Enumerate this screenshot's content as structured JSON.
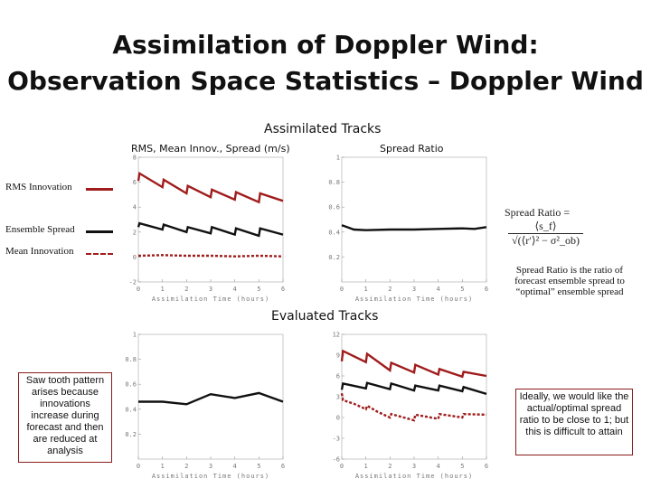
{
  "title_line1": "Assimilation of Doppler Wind:",
  "title_line2": "Observation Space Statistics – Doppler Wind",
  "assimilated_label": "Assimilated Tracks",
  "evaluated_label": "Evaluated Tracks",
  "panel_title_rms": "RMS, Mean Innov., Spread (m/s)",
  "panel_title_ratio": "Spread Ratio",
  "legend": {
    "rms": "RMS Innovation",
    "spread": "Ensemble Spread",
    "mean": "Mean Innovation",
    "rms_color": "#a01c1c",
    "spread_color": "#111111",
    "mean_color": "#a01c1c"
  },
  "formula": {
    "label": "Spread Ratio =",
    "numerator": "⟨s_f⟩",
    "denominator": "√(⟨r′⟩² − σ²_ob)"
  },
  "ratio_note": "Spread Ratio is the ratio of forecast ensemble spread to “optimal” ensemble spread",
  "sawtooth_note": "Saw tooth pattern arises because innovations increase during forecast and then are reduced at analysis",
  "ideal_note": "Ideally, we would like the actual/optimal spread ratio to be close to 1; but this is difficult to attain",
  "chart_data": [
    {
      "id": "assim_rms",
      "type": "line",
      "xlabel": "Assimilation Time (hours)",
      "xlim": [
        0,
        6
      ],
      "ylim": [
        -2,
        8
      ],
      "xticks": [
        0,
        1,
        2,
        3,
        4,
        5,
        6
      ],
      "yticks": [
        -2,
        0,
        2,
        4,
        6,
        8
      ],
      "series": [
        {
          "role": "rms",
          "color": "#a01c1c",
          "dash": false,
          "x": [
            0,
            0.05,
            1,
            1.05,
            2,
            2.05,
            3,
            3.05,
            4,
            4.05,
            5,
            5.05,
            6
          ],
          "y": [
            6.1,
            6.7,
            5.6,
            6.2,
            5.1,
            5.7,
            4.8,
            5.4,
            4.6,
            5.2,
            4.4,
            5.1,
            4.5
          ]
        },
        {
          "role": "spread",
          "color": "#111111",
          "dash": false,
          "x": [
            0,
            0.05,
            1,
            1.05,
            2,
            2.05,
            3,
            3.05,
            4,
            4.05,
            5,
            5.05,
            6
          ],
          "y": [
            2.4,
            2.7,
            2.2,
            2.6,
            2.0,
            2.4,
            1.9,
            2.4,
            1.8,
            2.3,
            1.7,
            2.3,
            1.8
          ]
        },
        {
          "role": "mean",
          "color": "#a01c1c",
          "dash": true,
          "x": [
            0,
            1,
            2,
            3,
            4,
            5,
            6
          ],
          "y": [
            0.1,
            0.15,
            0.1,
            0.1,
            0.05,
            0.1,
            0.05
          ]
        }
      ]
    },
    {
      "id": "assim_ratio",
      "type": "line",
      "xlabel": "Assimilation Time (hours)",
      "xlim": [
        0,
        6
      ],
      "ylim": [
        0,
        1
      ],
      "xticks": [
        0,
        1,
        2,
        3,
        4,
        5,
        6
      ],
      "yticks": [
        0.2,
        0.4,
        0.6,
        0.8,
        1
      ],
      "series": [
        {
          "role": "spread",
          "color": "#111111",
          "dash": false,
          "x": [
            0,
            0.5,
            1,
            2,
            3,
            4,
            5,
            5.5,
            6
          ],
          "y": [
            0.455,
            0.42,
            0.415,
            0.42,
            0.42,
            0.425,
            0.43,
            0.425,
            0.44
          ]
        }
      ]
    },
    {
      "id": "eval_ratio",
      "type": "line",
      "xlabel": "Assimilation Time (hours)",
      "xlim": [
        0,
        6
      ],
      "ylim": [
        0,
        1
      ],
      "xticks": [
        0,
        1,
        2,
        3,
        4,
        5,
        6
      ],
      "yticks": [
        0.2,
        0.4,
        0.6,
        0.8,
        1
      ],
      "series": [
        {
          "role": "spread",
          "color": "#111111",
          "dash": false,
          "x": [
            0,
            1,
            2,
            3,
            4,
            5,
            6
          ],
          "y": [
            0.46,
            0.46,
            0.44,
            0.52,
            0.49,
            0.53,
            0.46
          ]
        }
      ]
    },
    {
      "id": "eval_rms",
      "type": "line",
      "xlabel": "Assimilation Time (hours)",
      "xlim": [
        0,
        6
      ],
      "ylim": [
        -6,
        12
      ],
      "xticks": [
        0,
        1,
        2,
        3,
        4,
        5,
        6
      ],
      "yticks": [
        -6,
        -3,
        0,
        3,
        6,
        9,
        12
      ],
      "series": [
        {
          "role": "rms",
          "color": "#a01c1c",
          "dash": false,
          "x": [
            0,
            0.05,
            1,
            1.05,
            2,
            2.05,
            3,
            3.05,
            4,
            4.05,
            5,
            5.05,
            6
          ],
          "y": [
            8.1,
            9.6,
            8.0,
            9.2,
            6.8,
            7.9,
            6.5,
            7.6,
            6.2,
            7.0,
            5.9,
            6.6,
            6.0
          ]
        },
        {
          "role": "spread",
          "color": "#111111",
          "dash": false,
          "x": [
            0,
            0.05,
            1,
            1.05,
            2,
            2.05,
            3,
            3.05,
            4,
            4.05,
            5,
            5.05,
            6
          ],
          "y": [
            4.0,
            4.9,
            4.2,
            5.0,
            4.1,
            4.9,
            3.9,
            4.6,
            3.9,
            4.6,
            3.8,
            4.4,
            3.4
          ]
        },
        {
          "role": "mean",
          "color": "#a01c1c",
          "dash": true,
          "x": [
            0,
            0.05,
            0.5,
            1,
            1.05,
            1.5,
            2,
            2.05,
            3,
            3.05,
            4,
            4.05,
            5,
            5.05,
            6
          ],
          "y": [
            3.5,
            2.5,
            2.0,
            1.2,
            1.7,
            0.8,
            0.0,
            0.5,
            -0.4,
            0.4,
            -0.2,
            0.5,
            0.0,
            0.5,
            0.4
          ]
        }
      ]
    }
  ]
}
